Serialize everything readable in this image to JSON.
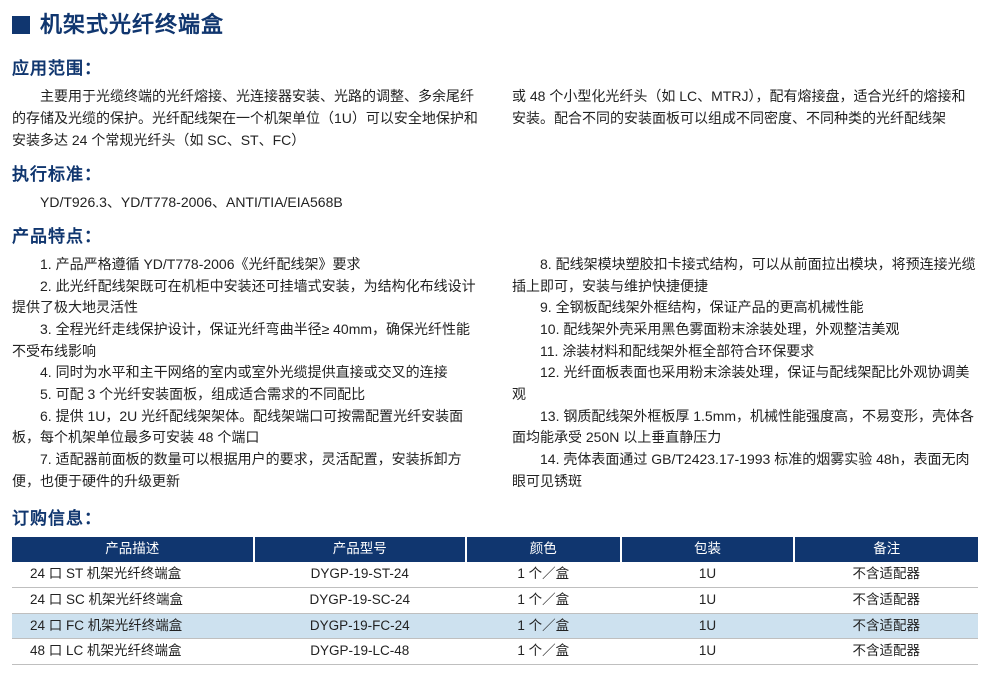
{
  "title": "机架式光纤终端盒",
  "sections": {
    "scope_heading": "应用范围：",
    "scope_left": "主要用于光缆终端的光纤熔接、光连接器安装、光路的调整、多余尾纤的存储及光缆的保护。光纤配线架在一个机架单位（1U）可以安全地保护和安装多达 24 个常规光纤头（如 SC、ST、FC）",
    "scope_right": "或 48 个小型化光纤头（如 LC、MTRJ），配有熔接盘，适合光纤的熔接和安装。配合不同的安装面板可以组成不同密度、不同种类的光纤配线架",
    "standard_heading": "执行标准：",
    "standard_text": "YD/T926.3、YD/T778-2006、ANTI/TIA/EIA568B",
    "features_heading": "产品特点：",
    "features_left": [
      "1. 产品严格遵循 YD/T778-2006《光纤配线架》要求",
      "2. 此光纤配线架既可在机柜中安装还可挂墙式安装，为结构化布线设计提供了极大地灵活性",
      "3. 全程光纤走线保护设计，保证光纤弯曲半径≥ 40mm，确保光纤性能不受布线影响",
      "4. 同时为水平和主干网络的室内或室外光缆提供直接或交叉的连接",
      "5. 可配 3 个光纤安装面板，组成适合需求的不同配比",
      "6. 提供 1U，2U 光纤配线架架体。配线架端口可按需配置光纤安装面板，每个机架单位最多可安装 48 个端口",
      "7. 适配器前面板的数量可以根据用户的要求，灵活配置，安装拆卸方便，也便于硬件的升级更新"
    ],
    "features_right": [
      "8. 配线架模块塑胶扣卡接式结构，可以从前面拉出模块，将预连接光缆插上即可，安装与维护快捷便捷",
      "9. 全钢板配线架外框结构，保证产品的更高机械性能",
      "10. 配线架外壳采用黑色雾面粉末涂装处理，外观整洁美观",
      "11. 涂装材料和配线架外框全部符合环保要求",
      "12. 光纤面板表面也采用粉末涂装处理，保证与配线架配比外观协调美观",
      "13. 钢质配线架外框板厚 1.5mm，机械性能强度高，不易变形，壳体各面均能承受 250N 以上垂直静压力",
      "14. 壳体表面通过 GB/T2423.17-1993 标准的烟雾实验 48h，表面无肉眼可见锈斑"
    ],
    "order_heading": "订购信息："
  },
  "table": {
    "headers": [
      "产品描述",
      "产品型号",
      "颜色",
      "包装",
      "备注"
    ],
    "col_widths": [
      "25%",
      "22%",
      "16%",
      "18%",
      "19%"
    ],
    "rows": [
      {
        "cells": [
          "24 口 ST 机架光纤终端盒",
          "DYGP-19-ST-24",
          "1 个／盒",
          "1U",
          "不含适配器"
        ],
        "alt": false
      },
      {
        "cells": [
          "24 口 SC 机架光纤终端盒",
          "DYGP-19-SC-24",
          "1 个／盒",
          "1U",
          "不含适配器"
        ],
        "alt": false
      },
      {
        "cells": [
          "24 口 FC 机架光纤终端盒",
          "DYGP-19-FC-24",
          "1 个／盒",
          "1U",
          "不含适配器"
        ],
        "alt": true
      },
      {
        "cells": [
          "48 口 LC 机架光纤终端盒",
          "DYGP-19-LC-48",
          "1 个／盒",
          "1U",
          "不含适配器"
        ],
        "alt": false
      }
    ]
  },
  "styling": {
    "brand_color": "#10366f",
    "alt_row_color": "#cde1ef",
    "grid_border": "#bfbfbf",
    "background": "#ffffff"
  }
}
